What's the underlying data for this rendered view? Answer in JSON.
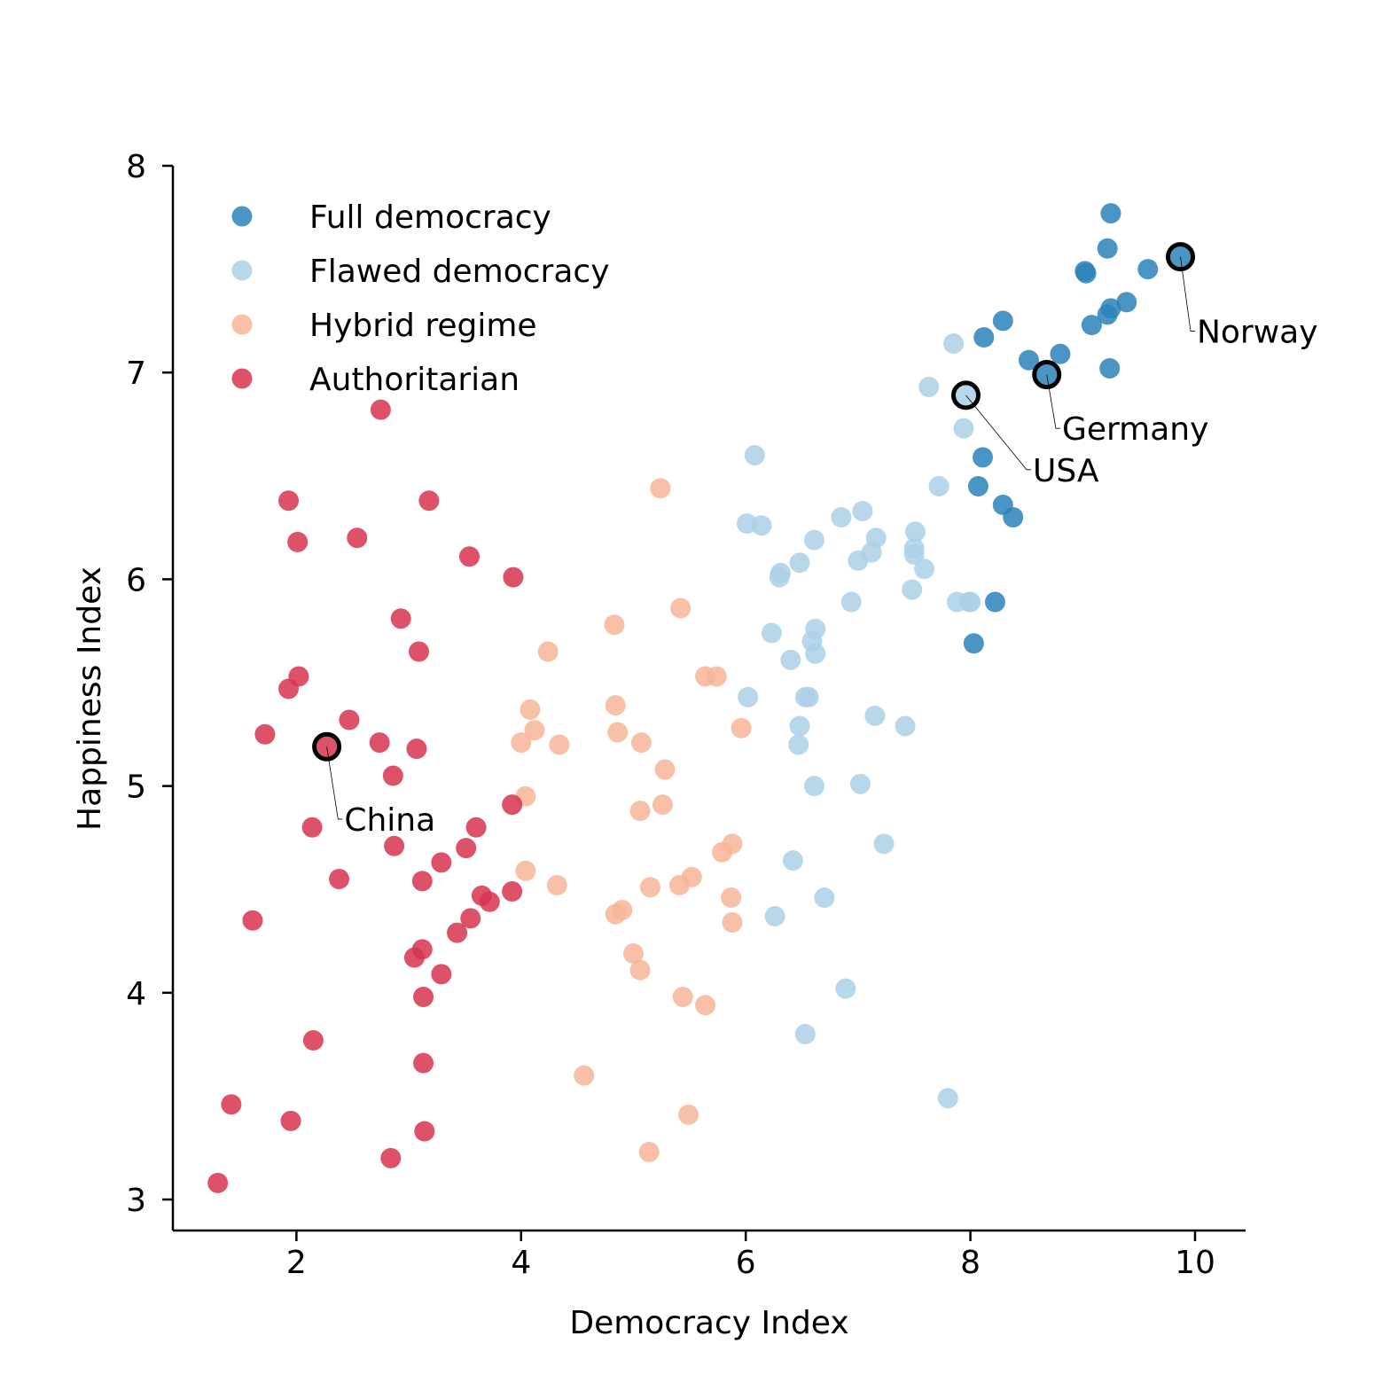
{
  "chart_data": {
    "type": "scatter",
    "xlabel": "Democracy Index",
    "ylabel": "Happiness Index",
    "xlim": [
      0.9,
      10.45
    ],
    "ylim": [
      2.85,
      8.0
    ],
    "xticks": [
      2,
      4,
      6,
      8,
      10
    ],
    "yticks": [
      3,
      4,
      5,
      6,
      7,
      8
    ],
    "grid": false,
    "legend_position": "top-left",
    "series": [
      {
        "name": "Full democracy",
        "color": "#2b83ba",
        "points": [
          [
            9.25,
            7.77
          ],
          [
            9.22,
            7.6
          ],
          [
            9.87,
            7.56
          ],
          [
            9.58,
            7.5
          ],
          [
            9.02,
            7.49
          ],
          [
            9.03,
            7.48
          ],
          [
            9.39,
            7.34
          ],
          [
            9.25,
            7.31
          ],
          [
            9.22,
            7.28
          ],
          [
            9.08,
            7.23
          ],
          [
            8.29,
            7.25
          ],
          [
            8.12,
            7.17
          ],
          [
            8.8,
            7.09
          ],
          [
            8.52,
            7.06
          ],
          [
            9.24,
            7.02
          ],
          [
            8.68,
            6.99
          ],
          [
            8.11,
            6.59
          ],
          [
            8.07,
            6.45
          ],
          [
            8.29,
            6.36
          ],
          [
            8.38,
            6.3
          ],
          [
            8.22,
            5.89
          ],
          [
            8.03,
            5.69
          ]
        ]
      },
      {
        "name": "Flawed democracy",
        "color": "#abd0e6",
        "points": [
          [
            7.85,
            7.14
          ],
          [
            7.63,
            6.93
          ],
          [
            7.96,
            6.89
          ],
          [
            7.94,
            6.73
          ],
          [
            6.08,
            6.6
          ],
          [
            7.72,
            6.45
          ],
          [
            7.04,
            6.33
          ],
          [
            6.85,
            6.3
          ],
          [
            6.01,
            6.27
          ],
          [
            6.14,
            6.26
          ],
          [
            7.51,
            6.23
          ],
          [
            7.16,
            6.2
          ],
          [
            6.61,
            6.19
          ],
          [
            7.5,
            6.15
          ],
          [
            7.12,
            6.13
          ],
          [
            7.5,
            6.12
          ],
          [
            7.0,
            6.09
          ],
          [
            6.48,
            6.08
          ],
          [
            7.59,
            6.05
          ],
          [
            6.31,
            6.03
          ],
          [
            6.3,
            6.01
          ],
          [
            7.48,
            5.95
          ],
          [
            6.94,
            5.89
          ],
          [
            7.88,
            5.89
          ],
          [
            7.99,
            5.89
          ],
          [
            8.0,
            5.89
          ],
          [
            6.62,
            5.76
          ],
          [
            6.23,
            5.74
          ],
          [
            6.59,
            5.7
          ],
          [
            6.62,
            5.64
          ],
          [
            6.4,
            5.61
          ],
          [
            6.02,
            5.43
          ],
          [
            6.53,
            5.43
          ],
          [
            6.56,
            5.43
          ],
          [
            7.15,
            5.34
          ],
          [
            6.48,
            5.29
          ],
          [
            7.42,
            5.29
          ],
          [
            6.47,
            5.2
          ],
          [
            7.02,
            5.01
          ],
          [
            6.61,
            5.0
          ],
          [
            7.23,
            4.72
          ],
          [
            6.42,
            4.64
          ],
          [
            6.7,
            4.46
          ],
          [
            6.26,
            4.37
          ],
          [
            6.89,
            4.02
          ],
          [
            6.53,
            3.8
          ],
          [
            7.8,
            3.49
          ]
        ]
      },
      {
        "name": "Hybrid regime",
        "color": "#f7b698",
        "points": [
          [
            5.24,
            6.44
          ],
          [
            5.42,
            5.86
          ],
          [
            4.83,
            5.78
          ],
          [
            4.24,
            5.65
          ],
          [
            5.64,
            5.53
          ],
          [
            5.74,
            5.53
          ],
          [
            4.08,
            5.37
          ],
          [
            4.84,
            5.39
          ],
          [
            4.12,
            5.27
          ],
          [
            4.86,
            5.26
          ],
          [
            5.96,
            5.28
          ],
          [
            4.0,
            5.21
          ],
          [
            4.34,
            5.2
          ],
          [
            5.07,
            5.21
          ],
          [
            5.28,
            5.08
          ],
          [
            4.04,
            4.95
          ],
          [
            5.26,
            4.91
          ],
          [
            5.06,
            4.88
          ],
          [
            5.88,
            4.72
          ],
          [
            5.79,
            4.68
          ],
          [
            4.04,
            4.59
          ],
          [
            4.32,
            4.52
          ],
          [
            5.15,
            4.51
          ],
          [
            5.41,
            4.52
          ],
          [
            5.52,
            4.56
          ],
          [
            5.87,
            4.46
          ],
          [
            4.9,
            4.4
          ],
          [
            4.84,
            4.38
          ],
          [
            5.88,
            4.34
          ],
          [
            5.0,
            4.19
          ],
          [
            5.06,
            4.11
          ],
          [
            5.44,
            3.98
          ],
          [
            5.64,
            3.94
          ],
          [
            4.56,
            3.6
          ],
          [
            5.49,
            3.41
          ],
          [
            5.14,
            3.23
          ]
        ]
      },
      {
        "name": "Authoritarian",
        "color": "#d7344f",
        "points": [
          [
            2.75,
            6.82
          ],
          [
            1.93,
            6.38
          ],
          [
            3.18,
            6.38
          ],
          [
            2.54,
            6.2
          ],
          [
            2.01,
            6.18
          ],
          [
            3.54,
            6.11
          ],
          [
            3.93,
            6.01
          ],
          [
            2.93,
            5.81
          ],
          [
            3.09,
            5.65
          ],
          [
            2.02,
            5.53
          ],
          [
            1.93,
            5.47
          ],
          [
            2.47,
            5.32
          ],
          [
            1.72,
            5.25
          ],
          [
            2.74,
            5.21
          ],
          [
            2.27,
            5.19
          ],
          [
            3.07,
            5.18
          ],
          [
            2.86,
            5.05
          ],
          [
            3.92,
            4.91
          ],
          [
            2.14,
            4.8
          ],
          [
            3.6,
            4.8
          ],
          [
            2.87,
            4.71
          ],
          [
            3.51,
            4.7
          ],
          [
            3.29,
            4.63
          ],
          [
            2.38,
            4.55
          ],
          [
            3.12,
            4.54
          ],
          [
            3.92,
            4.49
          ],
          [
            3.65,
            4.47
          ],
          [
            3.72,
            4.44
          ],
          [
            1.61,
            4.35
          ],
          [
            3.55,
            4.36
          ],
          [
            3.43,
            4.29
          ],
          [
            3.12,
            4.21
          ],
          [
            3.05,
            4.17
          ],
          [
            3.29,
            4.09
          ],
          [
            3.13,
            3.98
          ],
          [
            2.15,
            3.77
          ],
          [
            3.13,
            3.66
          ],
          [
            1.42,
            3.46
          ],
          [
            1.95,
            3.38
          ],
          [
            3.14,
            3.33
          ],
          [
            2.84,
            3.2
          ],
          [
            1.3,
            3.08
          ]
        ]
      }
    ],
    "annotations": [
      {
        "label": "Norway",
        "x": 9.87,
        "y": 7.56,
        "text_x": 10.0,
        "text_y": 7.2
      },
      {
        "label": "Germany",
        "x": 8.68,
        "y": 6.99,
        "text_x": 8.8,
        "text_y": 6.73
      },
      {
        "label": "USA",
        "x": 7.96,
        "y": 6.89,
        "text_x": 8.54,
        "text_y": 6.53
      },
      {
        "label": "China",
        "x": 2.27,
        "y": 5.19,
        "text_x": 2.41,
        "text_y": 4.84
      }
    ]
  }
}
